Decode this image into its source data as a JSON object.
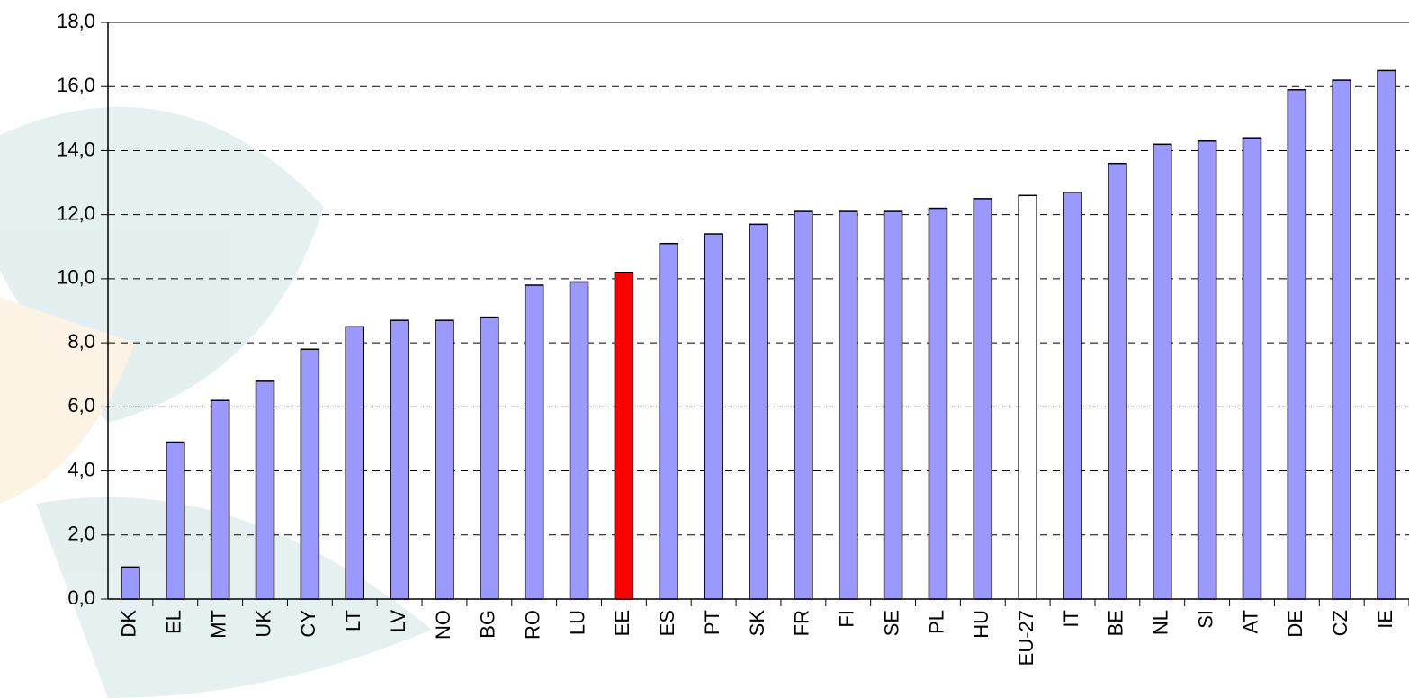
{
  "chart_data": {
    "type": "bar",
    "categories": [
      "DK",
      "EL",
      "MT",
      "UK",
      "CY",
      "LT",
      "LV",
      "NO",
      "BG",
      "RO",
      "LU",
      "EE",
      "ES",
      "PT",
      "SK",
      "FR",
      "FI",
      "SE",
      "PL",
      "HU",
      "EU-27",
      "IT",
      "BE",
      "NL",
      "SI",
      "AT",
      "DE",
      "CZ",
      "IE"
    ],
    "values": [
      1.0,
      4.9,
      6.2,
      6.8,
      7.8,
      8.5,
      8.7,
      8.7,
      8.8,
      9.8,
      9.9,
      10.2,
      11.1,
      11.4,
      11.7,
      12.1,
      12.1,
      12.1,
      12.2,
      12.5,
      12.6,
      12.7,
      13.6,
      14.2,
      14.3,
      14.4,
      15.9,
      16.2,
      16.5
    ],
    "colors": [
      "#9999ff",
      "#9999ff",
      "#9999ff",
      "#9999ff",
      "#9999ff",
      "#9999ff",
      "#9999ff",
      "#9999ff",
      "#9999ff",
      "#9999ff",
      "#9999ff",
      "#ff0000",
      "#9999ff",
      "#9999ff",
      "#9999ff",
      "#9999ff",
      "#9999ff",
      "#9999ff",
      "#9999ff",
      "#9999ff",
      "#ffffff",
      "#9999ff",
      "#9999ff",
      "#9999ff",
      "#9999ff",
      "#9999ff",
      "#9999ff",
      "#9999ff",
      "#9999ff"
    ],
    "ylim": [
      0,
      18
    ],
    "yticks": [
      {
        "value": 0,
        "label": "0,0"
      },
      {
        "value": 2,
        "label": "2,0"
      },
      {
        "value": 4,
        "label": "4,0"
      },
      {
        "value": 6,
        "label": "6,0"
      },
      {
        "value": 8,
        "label": "8,0"
      },
      {
        "value": 10,
        "label": "10,0"
      },
      {
        "value": 12,
        "label": "12,0"
      },
      {
        "value": 14,
        "label": "14,0"
      },
      {
        "value": 16,
        "label": "16,0"
      },
      {
        "value": 18,
        "label": "18,0"
      }
    ],
    "grid": true
  }
}
